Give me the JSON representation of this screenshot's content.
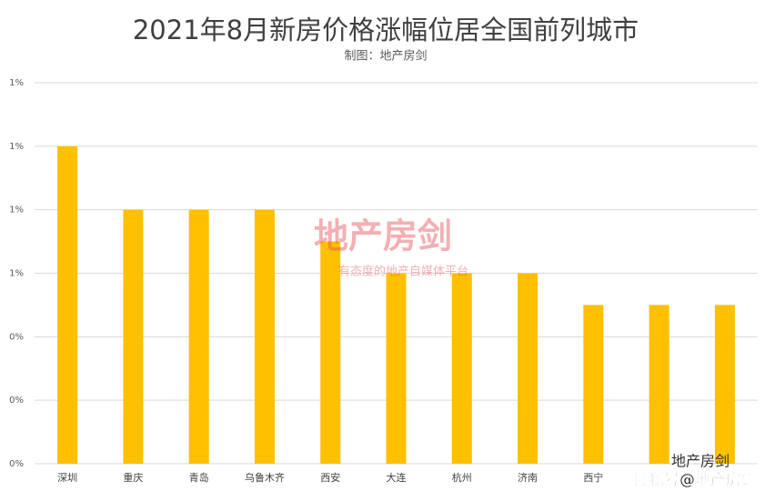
{
  "chart_data": {
    "type": "bar",
    "title": "2021年8月新房价格涨幅位居全国前列城市",
    "subtitle": "制图：地产房剑",
    "categories": [
      "深圳",
      "重庆",
      "青岛",
      "乌鲁木齐",
      "西安",
      "大连",
      "杭州",
      "济南",
      "西宁",
      null,
      null
    ],
    "values": [
      1.0,
      0.8,
      0.8,
      0.8,
      0.7,
      0.6,
      0.6,
      0.6,
      0.5,
      0.5,
      0.5
    ],
    "color": "#ffc000",
    "ylim": [
      0,
      1.2
    ],
    "yticks": [
      {
        "value": 0,
        "label": "0%"
      },
      {
        "value": 0.2,
        "label": "0%"
      },
      {
        "value": 0.4,
        "label": "0%"
      },
      {
        "value": 0.6,
        "label": "1%"
      },
      {
        "value": 0.8,
        "label": "1%"
      },
      {
        "value": 1.0,
        "label": "1%"
      },
      {
        "value": 1.2,
        "label": "1%"
      }
    ],
    "grid": true
  },
  "watermark": {
    "logo": "地产房剑",
    "slogan": "有态度的地产自媒体平台",
    "account": "地产房剑",
    "source": "搜狐号@地产房剑"
  }
}
